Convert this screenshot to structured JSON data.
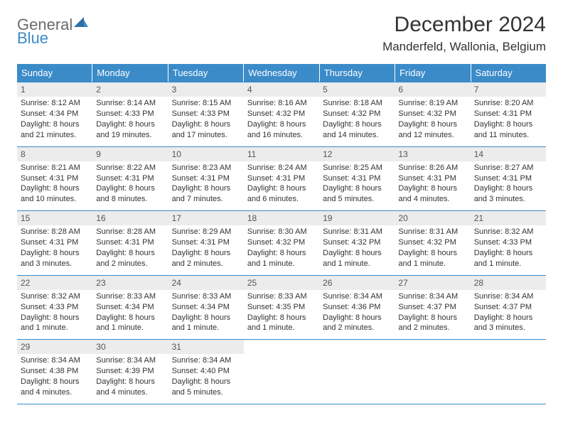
{
  "logo": {
    "word1": "General",
    "word2": "Blue"
  },
  "title": "December 2024",
  "location": "Manderfeld, Wallonia, Belgium",
  "colors": {
    "header_bg": "#3b8bc9",
    "header_text": "#ffffff",
    "daynum_bg": "#ececec",
    "rule": "#3b8bc9",
    "logo_gray": "#6b6b6b",
    "logo_blue": "#3b8bc9"
  },
  "weekdays": [
    "Sunday",
    "Monday",
    "Tuesday",
    "Wednesday",
    "Thursday",
    "Friday",
    "Saturday"
  ],
  "weeks": [
    [
      {
        "n": "1",
        "sr": "Sunrise: 8:12 AM",
        "ss": "Sunset: 4:34 PM",
        "dl": "Daylight: 8 hours and 21 minutes."
      },
      {
        "n": "2",
        "sr": "Sunrise: 8:14 AM",
        "ss": "Sunset: 4:33 PM",
        "dl": "Daylight: 8 hours and 19 minutes."
      },
      {
        "n": "3",
        "sr": "Sunrise: 8:15 AM",
        "ss": "Sunset: 4:33 PM",
        "dl": "Daylight: 8 hours and 17 minutes."
      },
      {
        "n": "4",
        "sr": "Sunrise: 8:16 AM",
        "ss": "Sunset: 4:32 PM",
        "dl": "Daylight: 8 hours and 16 minutes."
      },
      {
        "n": "5",
        "sr": "Sunrise: 8:18 AM",
        "ss": "Sunset: 4:32 PM",
        "dl": "Daylight: 8 hours and 14 minutes."
      },
      {
        "n": "6",
        "sr": "Sunrise: 8:19 AM",
        "ss": "Sunset: 4:32 PM",
        "dl": "Daylight: 8 hours and 12 minutes."
      },
      {
        "n": "7",
        "sr": "Sunrise: 8:20 AM",
        "ss": "Sunset: 4:31 PM",
        "dl": "Daylight: 8 hours and 11 minutes."
      }
    ],
    [
      {
        "n": "8",
        "sr": "Sunrise: 8:21 AM",
        "ss": "Sunset: 4:31 PM",
        "dl": "Daylight: 8 hours and 10 minutes."
      },
      {
        "n": "9",
        "sr": "Sunrise: 8:22 AM",
        "ss": "Sunset: 4:31 PM",
        "dl": "Daylight: 8 hours and 8 minutes."
      },
      {
        "n": "10",
        "sr": "Sunrise: 8:23 AM",
        "ss": "Sunset: 4:31 PM",
        "dl": "Daylight: 8 hours and 7 minutes."
      },
      {
        "n": "11",
        "sr": "Sunrise: 8:24 AM",
        "ss": "Sunset: 4:31 PM",
        "dl": "Daylight: 8 hours and 6 minutes."
      },
      {
        "n": "12",
        "sr": "Sunrise: 8:25 AM",
        "ss": "Sunset: 4:31 PM",
        "dl": "Daylight: 8 hours and 5 minutes."
      },
      {
        "n": "13",
        "sr": "Sunrise: 8:26 AM",
        "ss": "Sunset: 4:31 PM",
        "dl": "Daylight: 8 hours and 4 minutes."
      },
      {
        "n": "14",
        "sr": "Sunrise: 8:27 AM",
        "ss": "Sunset: 4:31 PM",
        "dl": "Daylight: 8 hours and 3 minutes."
      }
    ],
    [
      {
        "n": "15",
        "sr": "Sunrise: 8:28 AM",
        "ss": "Sunset: 4:31 PM",
        "dl": "Daylight: 8 hours and 3 minutes."
      },
      {
        "n": "16",
        "sr": "Sunrise: 8:28 AM",
        "ss": "Sunset: 4:31 PM",
        "dl": "Daylight: 8 hours and 2 minutes."
      },
      {
        "n": "17",
        "sr": "Sunrise: 8:29 AM",
        "ss": "Sunset: 4:31 PM",
        "dl": "Daylight: 8 hours and 2 minutes."
      },
      {
        "n": "18",
        "sr": "Sunrise: 8:30 AM",
        "ss": "Sunset: 4:32 PM",
        "dl": "Daylight: 8 hours and 1 minute."
      },
      {
        "n": "19",
        "sr": "Sunrise: 8:31 AM",
        "ss": "Sunset: 4:32 PM",
        "dl": "Daylight: 8 hours and 1 minute."
      },
      {
        "n": "20",
        "sr": "Sunrise: 8:31 AM",
        "ss": "Sunset: 4:32 PM",
        "dl": "Daylight: 8 hours and 1 minute."
      },
      {
        "n": "21",
        "sr": "Sunrise: 8:32 AM",
        "ss": "Sunset: 4:33 PM",
        "dl": "Daylight: 8 hours and 1 minute."
      }
    ],
    [
      {
        "n": "22",
        "sr": "Sunrise: 8:32 AM",
        "ss": "Sunset: 4:33 PM",
        "dl": "Daylight: 8 hours and 1 minute."
      },
      {
        "n": "23",
        "sr": "Sunrise: 8:33 AM",
        "ss": "Sunset: 4:34 PM",
        "dl": "Daylight: 8 hours and 1 minute."
      },
      {
        "n": "24",
        "sr": "Sunrise: 8:33 AM",
        "ss": "Sunset: 4:34 PM",
        "dl": "Daylight: 8 hours and 1 minute."
      },
      {
        "n": "25",
        "sr": "Sunrise: 8:33 AM",
        "ss": "Sunset: 4:35 PM",
        "dl": "Daylight: 8 hours and 1 minute."
      },
      {
        "n": "26",
        "sr": "Sunrise: 8:34 AM",
        "ss": "Sunset: 4:36 PM",
        "dl": "Daylight: 8 hours and 2 minutes."
      },
      {
        "n": "27",
        "sr": "Sunrise: 8:34 AM",
        "ss": "Sunset: 4:37 PM",
        "dl": "Daylight: 8 hours and 2 minutes."
      },
      {
        "n": "28",
        "sr": "Sunrise: 8:34 AM",
        "ss": "Sunset: 4:37 PM",
        "dl": "Daylight: 8 hours and 3 minutes."
      }
    ],
    [
      {
        "n": "29",
        "sr": "Sunrise: 8:34 AM",
        "ss": "Sunset: 4:38 PM",
        "dl": "Daylight: 8 hours and 4 minutes."
      },
      {
        "n": "30",
        "sr": "Sunrise: 8:34 AM",
        "ss": "Sunset: 4:39 PM",
        "dl": "Daylight: 8 hours and 4 minutes."
      },
      {
        "n": "31",
        "sr": "Sunrise: 8:34 AM",
        "ss": "Sunset: 4:40 PM",
        "dl": "Daylight: 8 hours and 5 minutes."
      },
      {
        "empty": true
      },
      {
        "empty": true
      },
      {
        "empty": true
      },
      {
        "empty": true
      }
    ]
  ]
}
